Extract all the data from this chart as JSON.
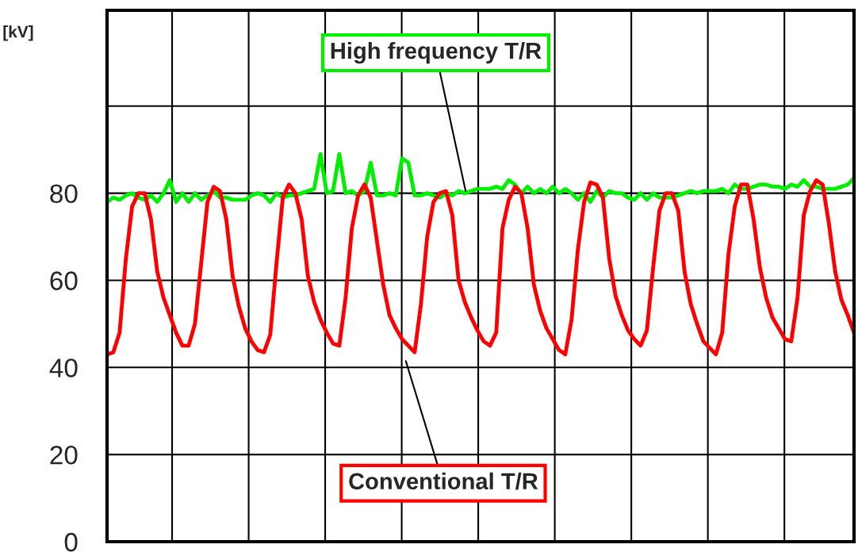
{
  "chart_data": {
    "type": "line",
    "ylabel": "[kV]",
    "categories": [
      null,
      null,
      null,
      null,
      null,
      null,
      null,
      null,
      null,
      null,
      null,
      null,
      null,
      null,
      null,
      null,
      null,
      null,
      null,
      null,
      null,
      null,
      null,
      null,
      null,
      null,
      null,
      null,
      null,
      null,
      null,
      null,
      null,
      null,
      null,
      null,
      null,
      null,
      null,
      null,
      null,
      null,
      null,
      null,
      null,
      null,
      null,
      null,
      null,
      null,
      null,
      null,
      null,
      null,
      null,
      null,
      null,
      null,
      null,
      null,
      null,
      null,
      null,
      null,
      null,
      null,
      null,
      null,
      null,
      null,
      null,
      null,
      null,
      null,
      null,
      null,
      null,
      null,
      null,
      null,
      null,
      null,
      null,
      null,
      null,
      null,
      null,
      null,
      null,
      null,
      null,
      null,
      null,
      null,
      null,
      null,
      null,
      null,
      null,
      null,
      null,
      null,
      null,
      null,
      null,
      null,
      null,
      null,
      null,
      null,
      null,
      null,
      null,
      null,
      null,
      null,
      null,
      null,
      null,
      null
    ],
    "ylim": [
      0,
      122
    ],
    "yticks": [
      0,
      20,
      40,
      60,
      80,
      {
        "value": 100,
        "label": null
      }
    ],
    "tick_labels": "y",
    "grid": true,
    "line_style": "solid",
    "series": [
      {
        "color": "#00ee00",
        "values": [
          78,
          79,
          78.5,
          79.5,
          80,
          79,
          78.5,
          79.5,
          78,
          80,
          83,
          78,
          80,
          78,
          80,
          78.5,
          79.5,
          80.5,
          79,
          79,
          78.5,
          78.5,
          78.5,
          79.5,
          80,
          79.5,
          78,
          80,
          79,
          79.5,
          79.5,
          80,
          80.5,
          81,
          89,
          80,
          80.5,
          89,
          80,
          80.5,
          79.5,
          80.5,
          87,
          79.5,
          79.5,
          80,
          79.5,
          88,
          87,
          79.5,
          79.5,
          80,
          79.5,
          79,
          80,
          79.5,
          80.5,
          80,
          80.5,
          81,
          81,
          81,
          81.5,
          81,
          83,
          82,
          80,
          81.5,
          80,
          81,
          80,
          81.5,
          80,
          81,
          80,
          78.5,
          80,
          78,
          80.5,
          79,
          80.5,
          80,
          80,
          79,
          78.5,
          80,
          78.5,
          80,
          79,
          79,
          79,
          79.5,
          80,
          80.5,
          80,
          80.5,
          80.5,
          80.5,
          81,
          80,
          82,
          81,
          81,
          81.5,
          82,
          82,
          81.5,
          81.5,
          81,
          82,
          81.5,
          83,
          81.5,
          81.5,
          81,
          81,
          81,
          81.5,
          82,
          83.5
        ]
      },
      {
        "color": "#ff0000",
        "values": [
          43,
          43.5,
          48,
          65,
          77,
          80,
          80,
          74,
          62,
          56,
          52,
          48,
          45,
          45,
          50,
          64,
          78,
          81.5,
          80.5,
          74,
          61,
          54,
          49,
          46,
          44,
          43.5,
          47.5,
          64,
          79,
          82,
          80,
          74,
          61,
          55,
          51,
          48,
          45.5,
          45,
          56,
          72,
          79.5,
          82,
          79,
          69,
          59,
          52,
          49,
          46.5,
          45,
          43.5,
          54.5,
          70,
          78,
          80,
          80.5,
          75,
          60,
          55,
          51.5,
          48.5,
          46,
          45,
          48,
          72,
          78.5,
          81.5,
          80,
          72,
          59,
          53,
          49,
          46.5,
          44,
          43,
          51,
          67,
          78,
          82.5,
          82,
          79,
          65,
          56.5,
          52,
          48.5,
          46.5,
          45,
          48.5,
          63,
          76,
          80,
          80,
          76,
          62,
          54.5,
          50,
          46,
          44.5,
          43,
          48,
          66,
          77,
          82,
          82,
          74,
          63,
          56,
          51.5,
          49,
          46.5,
          46,
          56,
          75,
          80.5,
          83,
          82,
          73,
          62,
          55.5,
          52,
          48
        ]
      }
    ],
    "annotations": [
      "High frequency T/R",
      "Conventional T/R"
    ]
  }
}
